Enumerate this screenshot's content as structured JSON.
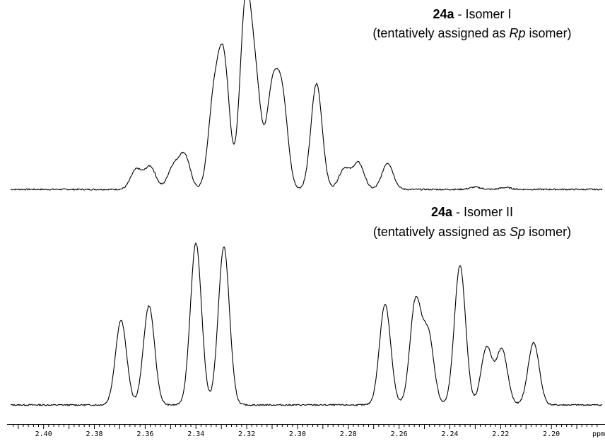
{
  "chart_data": [
    {
      "type": "line",
      "title_bold": "24a",
      "title_rest": " - Isomer I",
      "subtitle_pre": "(tentatively assigned as ",
      "subtitle_italic": "Rp",
      "subtitle_post": " isomer)",
      "xlim": [
        2.413,
        2.18
      ],
      "baseline": 0,
      "peaks": [
        {
          "ppm": 2.3635,
          "h": 0.105
        },
        {
          "ppm": 2.358,
          "h": 0.12
        },
        {
          "ppm": 2.349,
          "h": 0.115
        },
        {
          "ppm": 2.3445,
          "h": 0.18
        },
        {
          "ppm": 2.333,
          "h": 0.45
        },
        {
          "ppm": 2.329,
          "h": 0.66
        },
        {
          "ppm": 2.3205,
          "h": 0.95
        },
        {
          "ppm": 2.3165,
          "h": 0.52
        },
        {
          "ppm": 2.31,
          "h": 0.5
        },
        {
          "ppm": 2.306,
          "h": 0.47
        },
        {
          "ppm": 2.2925,
          "h": 0.56
        },
        {
          "ppm": 2.2815,
          "h": 0.11
        },
        {
          "ppm": 2.276,
          "h": 0.14
        },
        {
          "ppm": 2.2645,
          "h": 0.14
        },
        {
          "ppm": 2.23,
          "h": 0.012
        },
        {
          "ppm": 2.218,
          "h": 0.01
        }
      ]
    },
    {
      "type": "line",
      "title_bold": "24a",
      "title_rest": " - Isomer II",
      "subtitle_pre": "(tentatively assigned as ",
      "subtitle_italic": "Sp",
      "subtitle_post": " isomer)",
      "xlim": [
        2.413,
        2.18
      ],
      "baseline": 0,
      "peaks": [
        {
          "ppm": 2.3695,
          "h": 0.46
        },
        {
          "ppm": 2.3585,
          "h": 0.54
        },
        {
          "ppm": 2.34,
          "h": 0.88
        },
        {
          "ppm": 2.329,
          "h": 0.86
        },
        {
          "ppm": 2.2655,
          "h": 0.55
        },
        {
          "ppm": 2.2535,
          "h": 0.56
        },
        {
          "ppm": 2.2485,
          "h": 0.38
        },
        {
          "ppm": 2.236,
          "h": 0.76
        },
        {
          "ppm": 2.2255,
          "h": 0.31
        },
        {
          "ppm": 2.2195,
          "h": 0.3
        },
        {
          "ppm": 2.207,
          "h": 0.34
        }
      ]
    }
  ],
  "axis": {
    "ticks": [
      {
        "value": 2.4,
        "label": "2.40"
      },
      {
        "value": 2.38,
        "label": "2.38"
      },
      {
        "value": 2.36,
        "label": "2.36"
      },
      {
        "value": 2.34,
        "label": "2.34"
      },
      {
        "value": 2.32,
        "label": "2.32"
      },
      {
        "value": 2.3,
        "label": "2.30"
      },
      {
        "value": 2.28,
        "label": "2.28"
      },
      {
        "value": 2.26,
        "label": "2.26"
      },
      {
        "value": 2.24,
        "label": "2.24"
      },
      {
        "value": 2.22,
        "label": "2.22"
      },
      {
        "value": 2.2,
        "label": "2.20"
      }
    ],
    "minor_step": 0.002,
    "unit_label": "ppm"
  }
}
